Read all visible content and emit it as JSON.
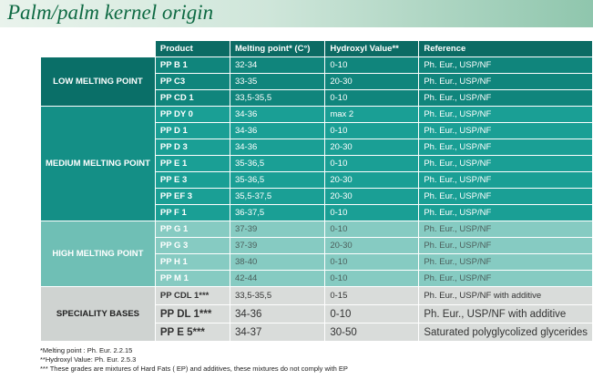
{
  "header": {
    "title": "Palm/palm kernel origin"
  },
  "table": {
    "columns": [
      "Product",
      "Melting point* (C°)",
      "Hydroxyl Value**",
      "Reference"
    ],
    "groups": [
      {
        "label": "LOW MELTING POINT",
        "rows": [
          [
            "PP B 1",
            "32-34",
            "0-10",
            "Ph. Eur., USP/NF"
          ],
          [
            "PP C3",
            "33-35",
            "20-30",
            "Ph. Eur., USP/NF"
          ],
          [
            "PP CD 1",
            "33,5-35,5",
            "0-10",
            "Ph. Eur., USP/NF"
          ]
        ]
      },
      {
        "label": "MEDIUM MELTING POINT",
        "rows": [
          [
            "PP DY 0",
            "34-36",
            "max 2",
            "Ph. Eur., USP/NF"
          ],
          [
            "PP D 1",
            "34-36",
            "0-10",
            "Ph. Eur., USP/NF"
          ],
          [
            "PP D 3",
            "34-36",
            "20-30",
            "Ph. Eur., USP/NF"
          ],
          [
            "PP E 1",
            "35-36,5",
            "0-10",
            "Ph. Eur., USP/NF"
          ],
          [
            "PP E 3",
            "35-36,5",
            "20-30",
            "Ph. Eur., USP/NF"
          ],
          [
            "PP EF 3",
            "35,5-37,5",
            "20-30",
            "Ph. Eur., USP/NF"
          ],
          [
            "PP F 1",
            "36-37,5",
            "0-10",
            "Ph. Eur., USP/NF"
          ]
        ]
      },
      {
        "label": "HIGH MELTING POINT",
        "rows": [
          [
            "PP G 1",
            "37-39",
            "0-10",
            "Ph. Eur., USP/NF"
          ],
          [
            "PP G 3",
            "37-39",
            "20-30",
            "Ph. Eur., USP/NF"
          ],
          [
            "PP H 1",
            "38-40",
            "0-10",
            "Ph. Eur., USP/NF"
          ],
          [
            "PP M 1",
            "42-44",
            "0-10",
            "Ph. Eur., USP/NF"
          ]
        ]
      },
      {
        "label": "SPECIALITY BASES",
        "rows": [
          [
            "PP CDL 1***",
            "33,5-35,5",
            "0-15",
            "Ph. Eur., USP/NF with additive"
          ],
          [
            "PP DL 1***",
            "34-36",
            "0-10",
            "Ph. Eur., USP/NF with additive"
          ],
          [
            "PP E 5***",
            "34-37",
            "30-50",
            "Saturated polyglycolized glycerides"
          ]
        ]
      }
    ]
  },
  "footnotes": [
    "*Melting point : Ph. Eur. 2.2.15",
    "**Hydroxyl Value: Ph. Eur. 2.5.3",
    "*** These grades are mixtures of Hard Fats ( EP) and additives, these mixtures do not comply with EP"
  ]
}
